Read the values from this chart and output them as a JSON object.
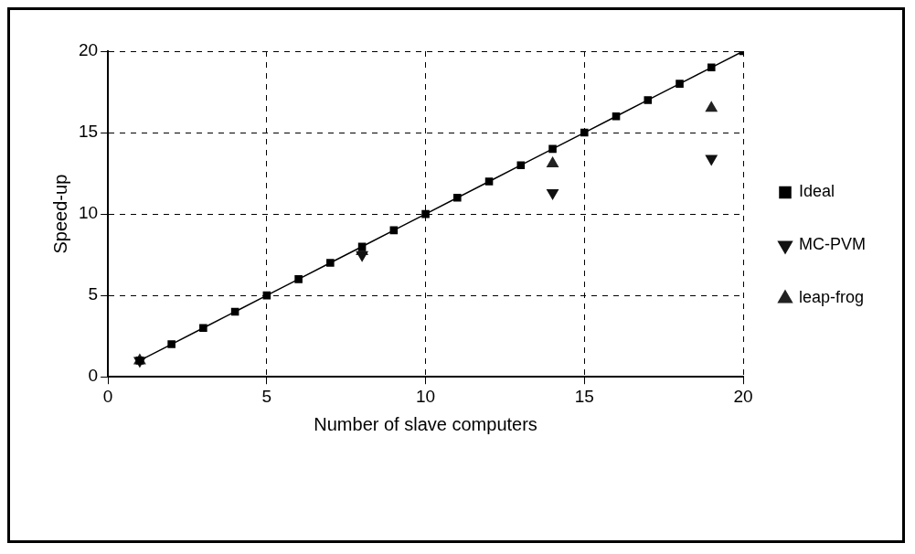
{
  "chart_data": {
    "type": "line",
    "xlabel": "Number of slave computers",
    "ylabel": "Speed-up",
    "xlim": [
      0,
      20
    ],
    "ylim": [
      0,
      20
    ],
    "xticks": [
      0,
      5,
      10,
      15,
      20
    ],
    "yticks": [
      0,
      5,
      10,
      15,
      20
    ],
    "grid": true,
    "legend": "right",
    "series": [
      {
        "name": "Ideal",
        "color": "#000000",
        "type": "line",
        "marker": "square",
        "x": [
          1,
          2,
          3,
          4,
          5,
          6,
          7,
          8,
          9,
          10,
          11,
          12,
          13,
          14,
          15,
          16,
          17,
          18,
          19,
          20
        ],
        "values": [
          1,
          2,
          3,
          4,
          5,
          6,
          7,
          8,
          9,
          10,
          11,
          12,
          13,
          14,
          15,
          16,
          17,
          18,
          19,
          20
        ]
      },
      {
        "name": "MC-PVM",
        "color": "#111111",
        "type": "scatter",
        "marker": "triangle",
        "x": [
          1,
          8,
          14,
          19
        ],
        "values": [
          1,
          7.5,
          11.3,
          13.4
        ]
      },
      {
        "name": "leap-frog",
        "color": "#222222",
        "type": "scatter",
        "marker": "triangle",
        "x": [
          1,
          8,
          14,
          19
        ],
        "values": [
          1,
          7.7,
          13.1,
          16.5
        ]
      }
    ]
  }
}
